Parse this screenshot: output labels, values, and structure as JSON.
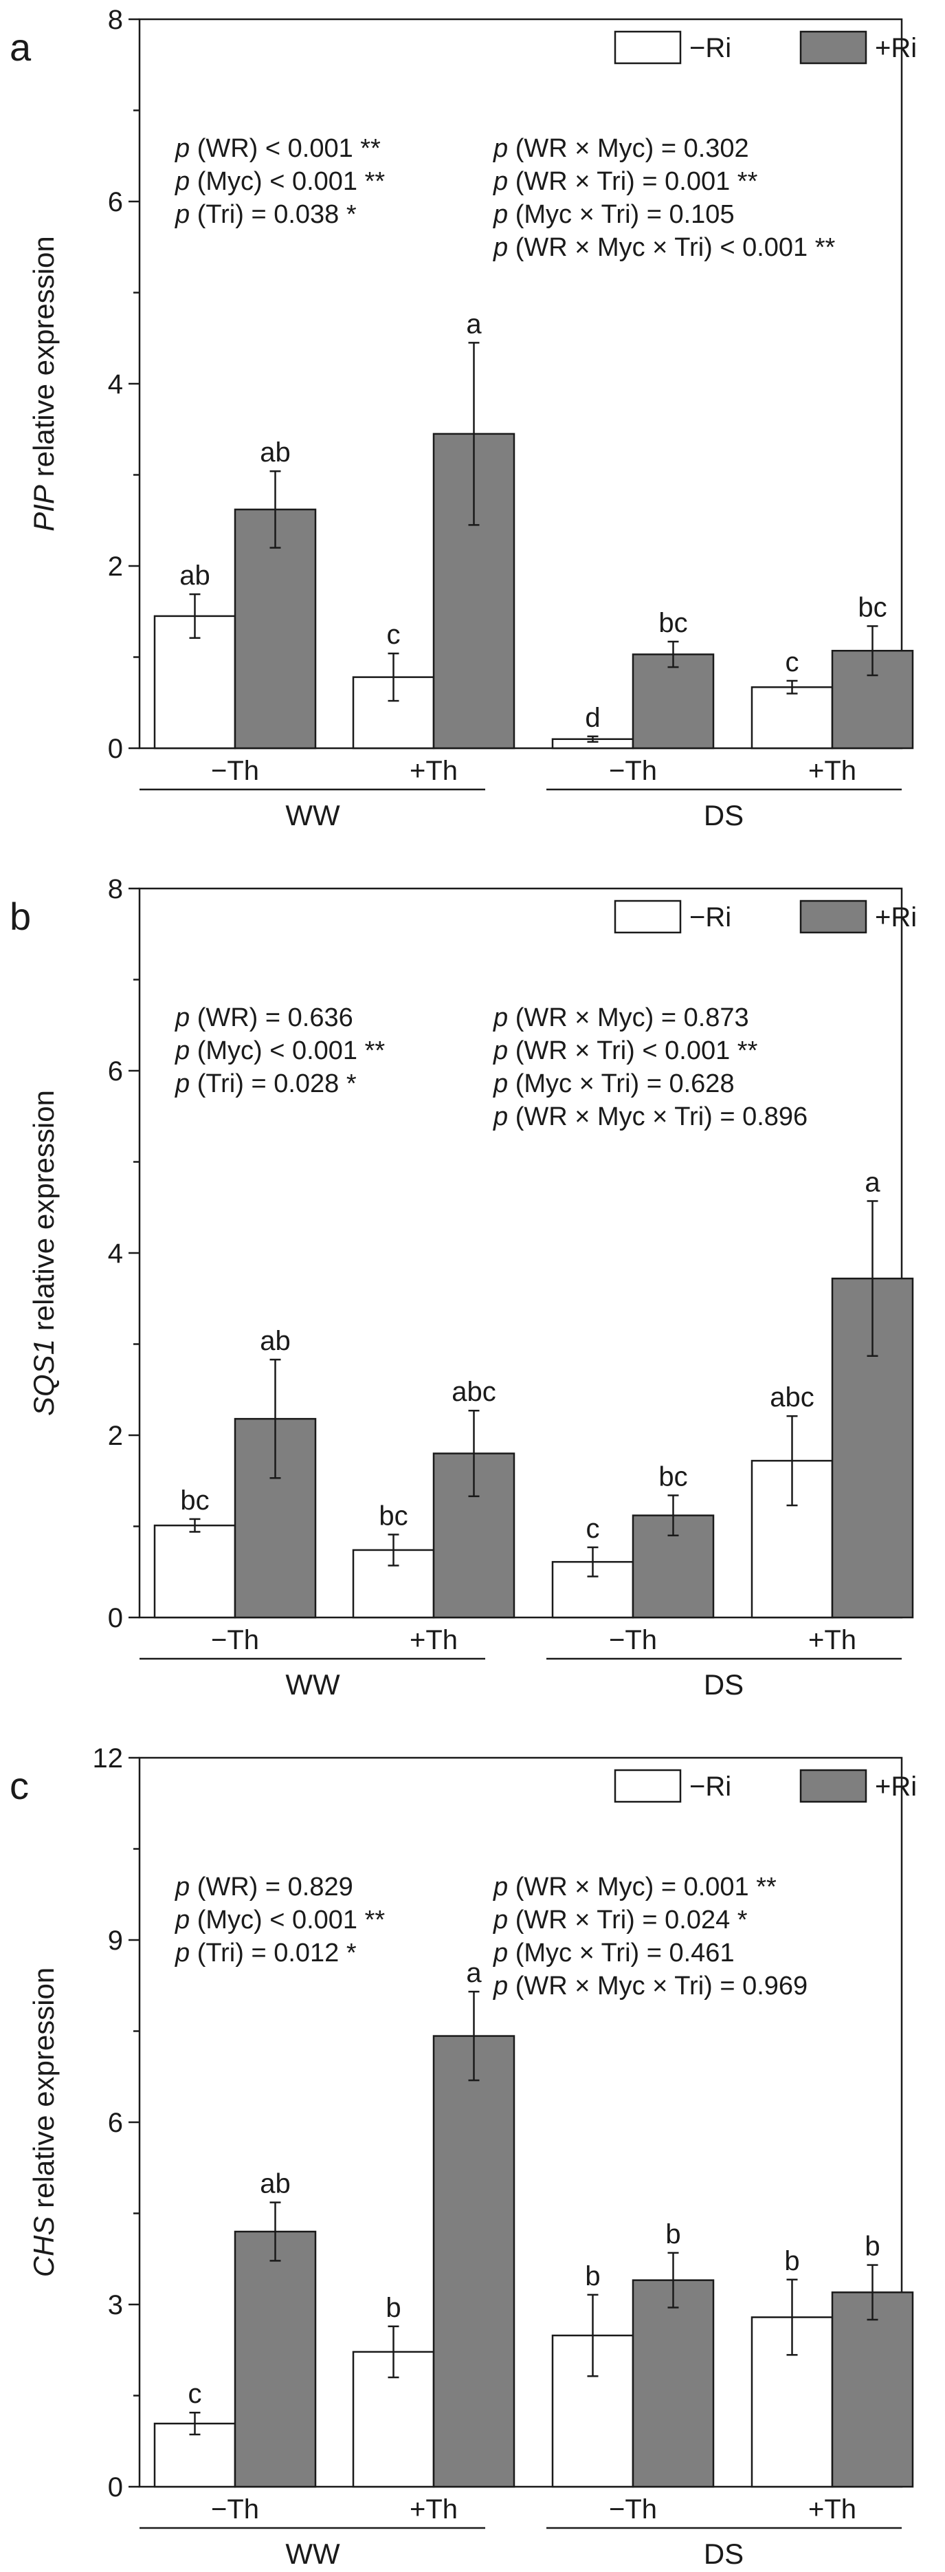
{
  "legend": {
    "items": [
      {
        "label": "−Ri",
        "color": "#ffffff"
      },
      {
        "label": "+Ri",
        "color": "#7f7f7f"
      }
    ]
  },
  "chart_data": [
    {
      "panel": "a",
      "type": "bar",
      "ylabel_italic": "PIP",
      "ylabel_rest": " relative expression",
      "ylim": [
        0,
        8
      ],
      "yticks": [
        0,
        2,
        4,
        6,
        8
      ],
      "categories": [
        "−Th",
        "+Th",
        "−Th",
        "+Th"
      ],
      "groups": [
        "WW",
        "DS"
      ],
      "series": [
        {
          "name": "−Ri",
          "values": [
            1.45,
            0.78,
            0.1,
            0.67
          ],
          "errors": [
            0.24,
            0.26,
            0.03,
            0.07
          ],
          "letters": [
            "ab",
            "c",
            "d",
            "c"
          ]
        },
        {
          "name": "+Ri",
          "values": [
            2.62,
            3.45,
            1.03,
            1.07
          ],
          "errors": [
            0.42,
            1.0,
            0.14,
            0.27
          ],
          "letters": [
            "ab",
            "a",
            "bc",
            "bc"
          ]
        }
      ],
      "stats_left": [
        {
          "prefix": "p",
          "text": " (WR) < 0.001 **"
        },
        {
          "prefix": "p",
          "text": " (Myc) < 0.001 **"
        },
        {
          "prefix": "p",
          "text": " (Tri) = 0.038 *"
        }
      ],
      "stats_right": [
        {
          "prefix": "p",
          "text": " (WR × Myc) = 0.302"
        },
        {
          "prefix": "p",
          "text": " (WR × Tri) = 0.001 **"
        },
        {
          "prefix": "p",
          "text": " (Myc × Tri) = 0.105"
        },
        {
          "prefix": "p",
          "text": " (WR × Myc × Tri) < 0.001 **"
        }
      ]
    },
    {
      "panel": "b",
      "type": "bar",
      "ylabel_italic": "SQS1",
      "ylabel_rest": " relative expression",
      "ylim": [
        0,
        8
      ],
      "yticks": [
        0,
        2,
        4,
        6,
        8
      ],
      "categories": [
        "−Th",
        "+Th",
        "−Th",
        "+Th"
      ],
      "groups": [
        "WW",
        "DS"
      ],
      "series": [
        {
          "name": "−Ri",
          "values": [
            1.01,
            0.74,
            0.61,
            1.72
          ],
          "errors": [
            0.07,
            0.17,
            0.16,
            0.49
          ],
          "letters": [
            "bc",
            "bc",
            "c",
            "abc"
          ]
        },
        {
          "name": "+Ri",
          "values": [
            2.18,
            1.8,
            1.12,
            3.72
          ],
          "errors": [
            0.65,
            0.47,
            0.22,
            0.85
          ],
          "letters": [
            "ab",
            "abc",
            "bc",
            "a"
          ]
        }
      ],
      "stats_left": [
        {
          "prefix": "p",
          "text": " (WR) = 0.636"
        },
        {
          "prefix": "p",
          "text": " (Myc) < 0.001 **"
        },
        {
          "prefix": "p",
          "text": " (Tri) = 0.028 *"
        }
      ],
      "stats_right": [
        {
          "prefix": "p",
          "text": " (WR × Myc) = 0.873"
        },
        {
          "prefix": "p",
          "text": " (WR × Tri) < 0.001 **"
        },
        {
          "prefix": "p",
          "text": " (Myc × Tri) = 0.628"
        },
        {
          "prefix": "p",
          "text": " (WR × Myc × Tri) = 0.896"
        }
      ]
    },
    {
      "panel": "c",
      "type": "bar",
      "ylabel_italic": "CHS",
      "ylabel_rest": " relative expression",
      "ylim": [
        0,
        12
      ],
      "yticks": [
        0,
        3,
        6,
        9,
        12
      ],
      "categories": [
        "−Th",
        "+Th",
        "−Th",
        "+Th"
      ],
      "groups": [
        "WW",
        "DS"
      ],
      "series": [
        {
          "name": "−Ri",
          "values": [
            1.04,
            2.22,
            2.49,
            2.79
          ],
          "errors": [
            0.18,
            0.42,
            0.67,
            0.62
          ],
          "letters": [
            "c",
            "b",
            "b",
            "b"
          ]
        },
        {
          "name": "+Ri",
          "values": [
            4.2,
            7.42,
            3.4,
            3.2
          ],
          "errors": [
            0.48,
            0.73,
            0.45,
            0.45
          ],
          "letters": [
            "ab",
            "a",
            "b",
            "b"
          ]
        }
      ],
      "stats_left": [
        {
          "prefix": "p",
          "text": " (WR) = 0.829"
        },
        {
          "prefix": "p",
          "text": " (Myc) < 0.001 **"
        },
        {
          "prefix": "p",
          "text": " (Tri) = 0.012 *"
        }
      ],
      "stats_right": [
        {
          "prefix": "p",
          "text": " (WR × Myc) = 0.001 **"
        },
        {
          "prefix": "p",
          "text": " (WR × Tri) = 0.024 *"
        },
        {
          "prefix": "p",
          "text": " (Myc × Tri) = 0.461"
        },
        {
          "prefix": "p",
          "text": " (WR × Myc × Tri) = 0.969"
        }
      ]
    }
  ]
}
